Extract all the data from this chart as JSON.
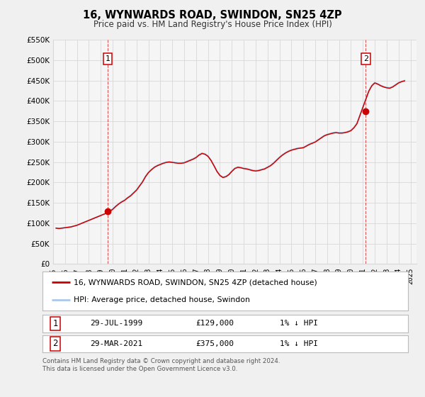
{
  "title": "16, WYNWARDS ROAD, SWINDON, SN25 4ZP",
  "subtitle": "Price paid vs. HM Land Registry's House Price Index (HPI)",
  "bg_color": "#f0f0f0",
  "plot_bg_color": "#f5f5f5",
  "grid_color": "#d8d8d8",
  "hpi_color": "#aac8e8",
  "price_color": "#cc0000",
  "ylim": [
    0,
    550000
  ],
  "yticks": [
    0,
    50000,
    100000,
    150000,
    200000,
    250000,
    300000,
    350000,
    400000,
    450000,
    500000,
    550000
  ],
  "ytick_labels": [
    "£0",
    "£50K",
    "£100K",
    "£150K",
    "£200K",
    "£250K",
    "£300K",
    "£350K",
    "£400K",
    "£450K",
    "£500K",
    "£550K"
  ],
  "xlim_start": 1995.0,
  "xlim_end": 2025.5,
  "xticks": [
    1995,
    1996,
    1997,
    1998,
    1999,
    2000,
    2001,
    2002,
    2003,
    2004,
    2005,
    2006,
    2007,
    2008,
    2009,
    2010,
    2011,
    2012,
    2013,
    2014,
    2015,
    2016,
    2017,
    2018,
    2019,
    2020,
    2021,
    2022,
    2023,
    2024,
    2025
  ],
  "sale1_x": 1999.57,
  "sale1_y": 129000,
  "sale2_x": 2021.24,
  "sale2_y": 375000,
  "legend_line1": "16, WYNWARDS ROAD, SWINDON, SN25 4ZP (detached house)",
  "legend_line2": "HPI: Average price, detached house, Swindon",
  "table_row1": [
    "1",
    "29-JUL-1999",
    "£129,000",
    "1% ↓ HPI"
  ],
  "table_row2": [
    "2",
    "29-MAR-2021",
    "£375,000",
    "1% ↓ HPI"
  ],
  "footnote": "Contains HM Land Registry data © Crown copyright and database right 2024.\nThis data is licensed under the Open Government Licence v3.0.",
  "hpi_data": {
    "years": [
      1995.25,
      1995.5,
      1995.75,
      1996.0,
      1996.25,
      1996.5,
      1996.75,
      1997.0,
      1997.25,
      1997.5,
      1997.75,
      1998.0,
      1998.25,
      1998.5,
      1998.75,
      1999.0,
      1999.25,
      1999.5,
      1999.75,
      2000.0,
      2000.25,
      2000.5,
      2000.75,
      2001.0,
      2001.25,
      2001.5,
      2001.75,
      2002.0,
      2002.25,
      2002.5,
      2002.75,
      2003.0,
      2003.25,
      2003.5,
      2003.75,
      2004.0,
      2004.25,
      2004.5,
      2004.75,
      2005.0,
      2005.25,
      2005.5,
      2005.75,
      2006.0,
      2006.25,
      2006.5,
      2006.75,
      2007.0,
      2007.25,
      2007.5,
      2007.75,
      2008.0,
      2008.25,
      2008.5,
      2008.75,
      2009.0,
      2009.25,
      2009.5,
      2009.75,
      2010.0,
      2010.25,
      2010.5,
      2010.75,
      2011.0,
      2011.25,
      2011.5,
      2011.75,
      2012.0,
      2012.25,
      2012.5,
      2012.75,
      2013.0,
      2013.25,
      2013.5,
      2013.75,
      2014.0,
      2014.25,
      2014.5,
      2014.75,
      2015.0,
      2015.25,
      2015.5,
      2015.75,
      2016.0,
      2016.25,
      2016.5,
      2016.75,
      2017.0,
      2017.25,
      2017.5,
      2017.75,
      2018.0,
      2018.25,
      2018.5,
      2018.75,
      2019.0,
      2019.25,
      2019.5,
      2019.75,
      2020.0,
      2020.25,
      2020.5,
      2020.75,
      2021.0,
      2021.25,
      2021.5,
      2021.75,
      2022.0,
      2022.25,
      2022.5,
      2022.75,
      2023.0,
      2023.25,
      2023.5,
      2023.75,
      2024.0,
      2024.25,
      2024.5
    ],
    "values": [
      88000,
      87000,
      88000,
      89000,
      90000,
      91000,
      93000,
      95000,
      98000,
      101000,
      104000,
      107000,
      110000,
      113000,
      116000,
      119000,
      122000,
      125000,
      130000,
      135000,
      142000,
      148000,
      153000,
      157000,
      163000,
      168000,
      175000,
      182000,
      192000,
      202000,
      215000,
      225000,
      232000,
      238000,
      242000,
      245000,
      248000,
      250000,
      251000,
      250000,
      249000,
      248000,
      248000,
      249000,
      252000,
      255000,
      258000,
      262000,
      268000,
      272000,
      270000,
      265000,
      255000,
      242000,
      228000,
      218000,
      213000,
      215000,
      220000,
      228000,
      235000,
      238000,
      237000,
      235000,
      234000,
      232000,
      230000,
      229000,
      230000,
      232000,
      234000,
      238000,
      242000,
      248000,
      255000,
      262000,
      268000,
      273000,
      277000,
      280000,
      282000,
      284000,
      285000,
      286000,
      290000,
      294000,
      297000,
      300000,
      305000,
      310000,
      315000,
      318000,
      320000,
      322000,
      323000,
      322000,
      322000,
      323000,
      325000,
      328000,
      335000,
      345000,
      365000,
      385000,
      405000,
      425000,
      438000,
      445000,
      442000,
      438000,
      435000,
      433000,
      432000,
      435000,
      440000,
      445000,
      448000,
      450000
    ]
  },
  "price_line_data": {
    "years": [
      1995.25,
      1995.5,
      1995.75,
      1996.0,
      1996.25,
      1996.5,
      1996.75,
      1997.0,
      1997.25,
      1997.5,
      1997.75,
      1998.0,
      1998.25,
      1998.5,
      1998.75,
      1999.0,
      1999.25,
      1999.5,
      1999.75,
      2000.0,
      2000.25,
      2000.5,
      2000.75,
      2001.0,
      2001.25,
      2001.5,
      2001.75,
      2002.0,
      2002.25,
      2002.5,
      2002.75,
      2003.0,
      2003.25,
      2003.5,
      2003.75,
      2004.0,
      2004.25,
      2004.5,
      2004.75,
      2005.0,
      2005.25,
      2005.5,
      2005.75,
      2006.0,
      2006.25,
      2006.5,
      2006.75,
      2007.0,
      2007.25,
      2007.5,
      2007.75,
      2008.0,
      2008.25,
      2008.5,
      2008.75,
      2009.0,
      2009.25,
      2009.5,
      2009.75,
      2010.0,
      2010.25,
      2010.5,
      2010.75,
      2011.0,
      2011.25,
      2011.5,
      2011.75,
      2012.0,
      2012.25,
      2012.5,
      2012.75,
      2013.0,
      2013.25,
      2013.5,
      2013.75,
      2014.0,
      2014.25,
      2014.5,
      2014.75,
      2015.0,
      2015.25,
      2015.5,
      2015.75,
      2016.0,
      2016.25,
      2016.5,
      2016.75,
      2017.0,
      2017.25,
      2017.5,
      2017.75,
      2018.0,
      2018.25,
      2018.5,
      2018.75,
      2019.0,
      2019.25,
      2019.5,
      2019.75,
      2020.0,
      2020.25,
      2020.5,
      2020.75,
      2021.0,
      2021.25,
      2021.5,
      2021.75,
      2022.0,
      2022.25,
      2022.5,
      2022.75,
      2023.0,
      2023.25,
      2023.5,
      2023.75,
      2024.0,
      2024.25,
      2024.5
    ],
    "values": [
      88000,
      87000,
      88000,
      89000,
      90000,
      91000,
      93000,
      95000,
      98000,
      101000,
      104000,
      107000,
      110000,
      113000,
      116000,
      119000,
      122000,
      125000,
      129000,
      134000,
      141000,
      147000,
      152000,
      156000,
      162000,
      167000,
      174000,
      181000,
      191000,
      201000,
      214000,
      224000,
      231000,
      237000,
      241000,
      244000,
      247000,
      249000,
      250000,
      249000,
      248000,
      247000,
      247000,
      248000,
      251000,
      254000,
      257000,
      261000,
      267000,
      271000,
      269000,
      264000,
      254000,
      241000,
      227000,
      217000,
      212000,
      214000,
      219000,
      227000,
      234000,
      237000,
      236000,
      234000,
      233000,
      231000,
      229000,
      228000,
      229000,
      231000,
      233000,
      237000,
      241000,
      247000,
      254000,
      261000,
      267000,
      272000,
      276000,
      279000,
      281000,
      283000,
      284000,
      285000,
      289000,
      293000,
      296000,
      299000,
      304000,
      309000,
      314000,
      317000,
      319000,
      321000,
      322000,
      321000,
      321000,
      322000,
      324000,
      327000,
      334000,
      344000,
      364000,
      384000,
      404000,
      424000,
      437000,
      444000,
      441000,
      437000,
      434000,
      432000,
      431000,
      434000,
      439000,
      444000,
      447000,
      449000
    ]
  }
}
